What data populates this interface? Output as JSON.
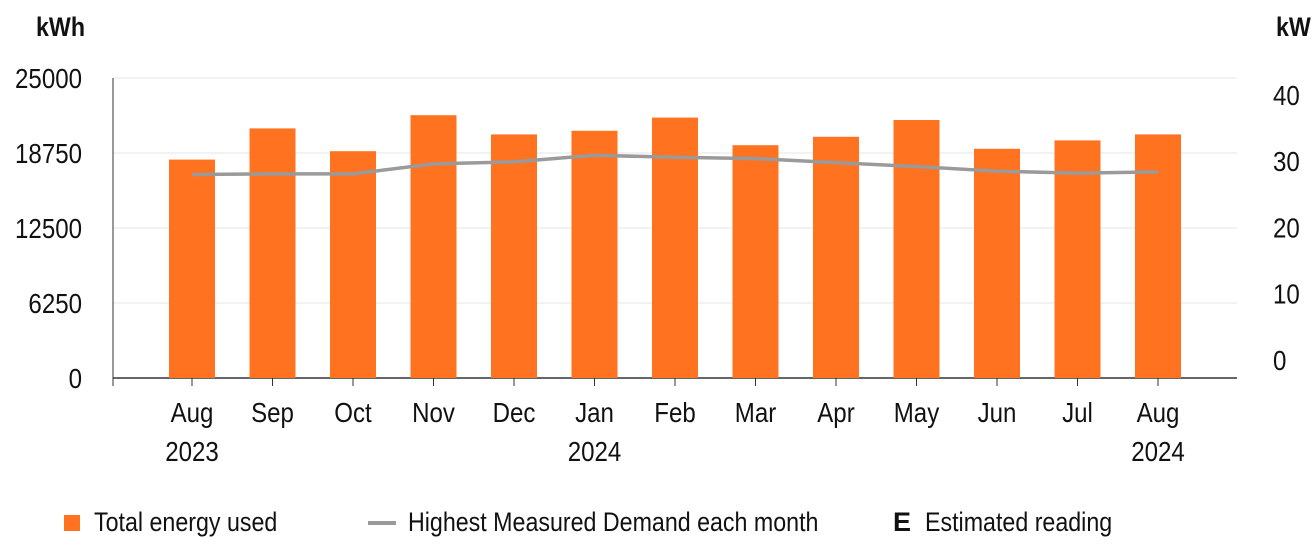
{
  "units": {
    "left": "kWh",
    "right": "kW"
  },
  "legend": {
    "bar_label": "Total energy used",
    "line_label": "Highest Measured Demand each month",
    "estimate_marker": "E",
    "estimate_label": "Estimated reading"
  },
  "colors": {
    "bar": "#ff7220",
    "line": "#9a9a9a",
    "grid": "#e6e6e6",
    "axis": "#333333"
  },
  "chart_data": {
    "type": "bar",
    "grid": true,
    "legend_position": "bottom",
    "categories": [
      [
        "Aug",
        "2023"
      ],
      [
        "Sep",
        ""
      ],
      [
        "Oct",
        ""
      ],
      [
        "Nov",
        ""
      ],
      [
        "Dec",
        ""
      ],
      [
        "Jan",
        "2024"
      ],
      [
        "Feb",
        ""
      ],
      [
        "Mar",
        ""
      ],
      [
        "Apr",
        ""
      ],
      [
        "May",
        ""
      ],
      [
        "Jun",
        ""
      ],
      [
        "Jul",
        ""
      ],
      [
        "Aug",
        "2024"
      ]
    ],
    "y_left": {
      "label": "kWh",
      "ticks": [
        0,
        6250,
        12500,
        18750,
        25000
      ],
      "range": [
        0,
        25000
      ]
    },
    "y_right": {
      "label": "kW",
      "ticks": [
        0,
        10,
        20,
        30,
        40
      ],
      "range": [
        0,
        40
      ]
    },
    "series": [
      {
        "name": "Total energy used",
        "type": "bar",
        "axis": "left",
        "values": [
          18200,
          20800,
          18900,
          21900,
          20300,
          20600,
          21700,
          19400,
          20100,
          21500,
          19100,
          19800,
          20300
        ]
      },
      {
        "name": "Highest Measured Demand each month",
        "type": "line",
        "axis": "right",
        "values": [
          28.0,
          28.1,
          28.1,
          29.6,
          29.9,
          30.9,
          30.6,
          30.4,
          29.8,
          29.2,
          28.5,
          28.2,
          28.4
        ]
      }
    ]
  }
}
